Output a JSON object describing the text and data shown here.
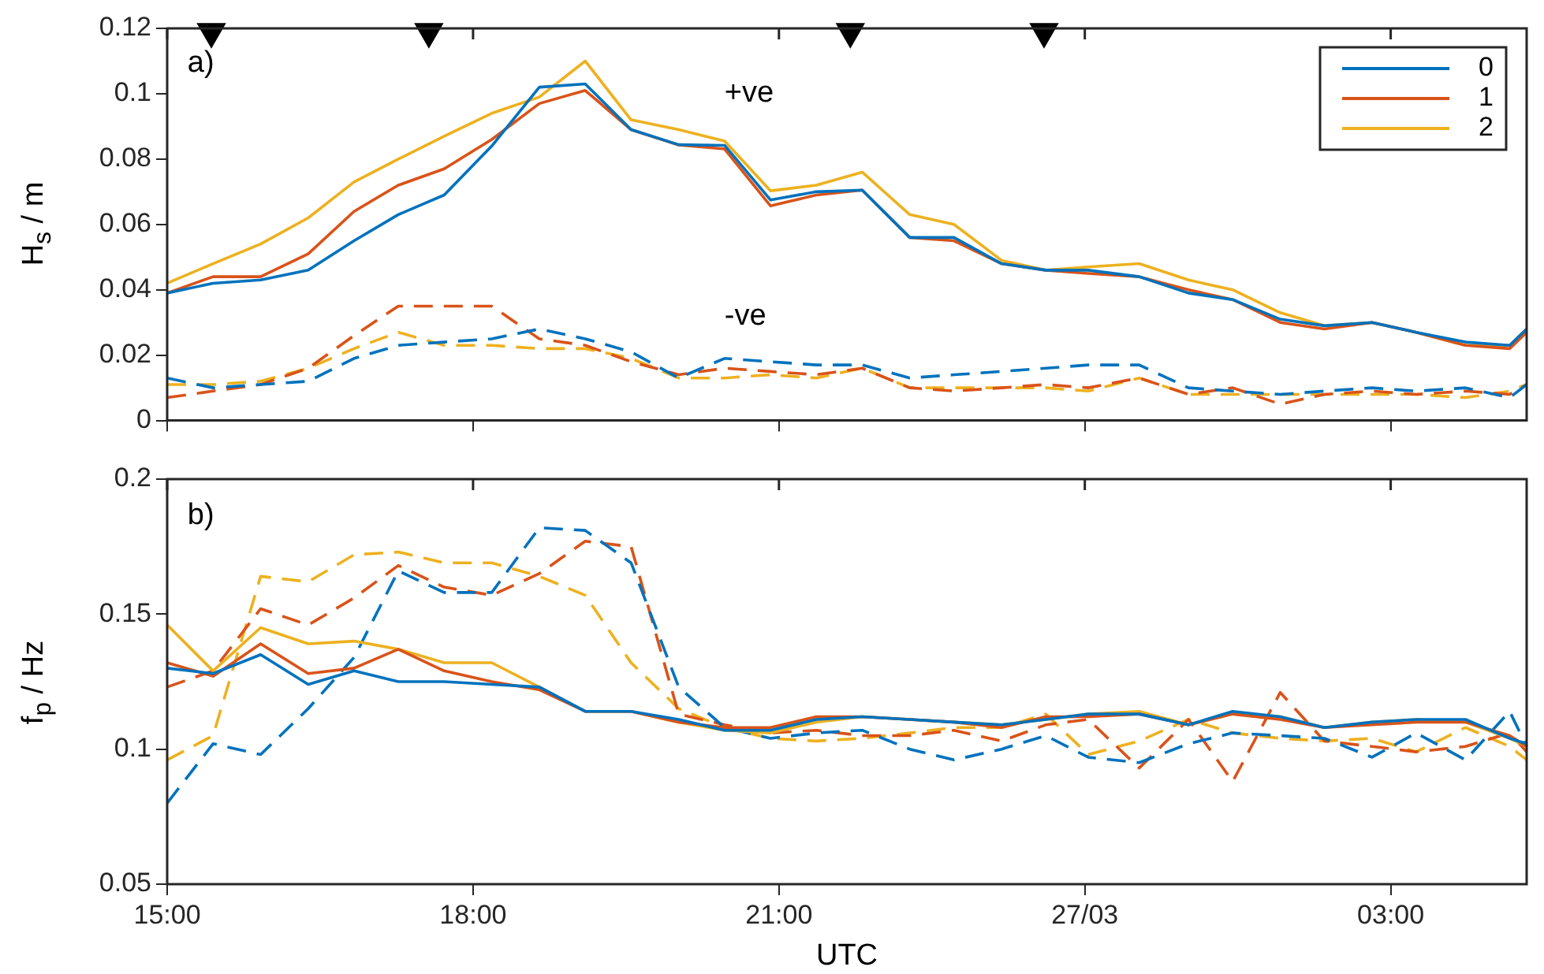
{
  "chart_data": [
    {
      "type": "line",
      "ylabel": "H$_{s}$ / m",
      "xlim": [
        "--03-26T15:00",
        "--03-27T04:20"
      ],
      "ylim": [
        0,
        0.12
      ],
      "xticks": [
        {
          "value": "--03-26T15:00",
          "label": null
        },
        {
          "value": "--03-26T18:00",
          "label": null
        },
        {
          "value": "--03-26T21:00",
          "label": null
        },
        {
          "value": "--03-27T00:00",
          "label": null
        },
        {
          "value": "--03-27T03:00",
          "label": null
        }
      ],
      "yticks": [
        0,
        0.02,
        0.04,
        0.06,
        0.08,
        0.1,
        0.12
      ],
      "tick_labels": "y",
      "legend": "top right",
      "grid": false,
      "annotations": [
        "a)",
        "+ve",
        "-ve"
      ],
      "x": [
        "--03-26T15:00",
        "--03-26T15:27",
        "--03-26T15:55",
        "--03-26T16:23",
        "--03-26T16:50",
        "--03-26T17:16",
        "--03-26T17:43",
        "--03-26T18:11",
        "--03-26T18:39",
        "--03-26T19:06",
        "--03-26T19:33",
        "--03-26T20:01",
        "--03-26T20:28",
        "--03-26T20:55",
        "--03-26T21:22",
        "--03-26T21:49",
        "--03-26T22:17",
        "--03-26T22:43",
        "--03-26T23:11",
        "--03-26T23:37",
        "--03-27T00:02",
        "--03-27T00:32",
        "--03-27T01:01",
        "--03-27T01:27",
        "--03-27T01:55",
        "--03-27T02:21",
        "--03-27T02:49",
        "--03-27T03:15",
        "--03-27T03:44",
        "--03-27T04:10",
        "--03-27T04:20"
      ],
      "series": [
        {
          "name": "0",
          "color": "#0072bd",
          "line_style": "solid",
          "values": [
            0.039,
            0.042,
            0.043,
            0.046,
            0.055,
            0.063,
            0.069,
            0.084,
            0.102,
            0.103,
            0.089,
            0.0844,
            0.0842,
            0.0675,
            0.07,
            0.0705,
            0.056,
            0.056,
            0.048,
            0.046,
            0.046,
            0.044,
            0.039,
            0.037,
            0.031,
            0.029,
            0.03,
            0.027,
            0.024,
            0.023,
            0.028
          ]
        },
        {
          "name": "1",
          "color": "#d95319",
          "line_style": "solid",
          "values": [
            0.039,
            0.044,
            0.044,
            0.051,
            0.064,
            0.072,
            0.077,
            0.086,
            0.097,
            0.101,
            0.089,
            0.0843,
            0.0831,
            0.0657,
            0.069,
            0.0705,
            0.056,
            0.055,
            0.048,
            0.046,
            0.045,
            0.044,
            0.04,
            0.037,
            0.03,
            0.028,
            0.03,
            0.027,
            0.023,
            0.022,
            0.027
          ]
        },
        {
          "name": "2",
          "color": "#edb120",
          "line_style": "solid",
          "values": [
            0.042,
            0.048,
            0.054,
            0.062,
            0.073,
            0.08,
            0.087,
            0.094,
            0.099,
            0.11,
            0.092,
            0.089,
            0.0855,
            0.0703,
            0.072,
            0.076,
            0.063,
            0.06,
            0.049,
            0.046,
            0.047,
            0.048,
            0.043,
            0.04,
            0.033,
            0.029,
            0.03,
            0.027,
            0.023,
            0.023,
            0.028
          ]
        },
        {
          "color": "#0072bd",
          "line_style": "dashed",
          "values": [
            0.013,
            0.01,
            0.011,
            0.012,
            0.019,
            0.023,
            0.024,
            0.025,
            0.028,
            0.025,
            0.021,
            0.013,
            0.019,
            0.018,
            0.017,
            0.017,
            0.013,
            0.014,
            0.015,
            0.016,
            0.017,
            0.017,
            0.01,
            0.009,
            0.008,
            0.009,
            0.01,
            0.009,
            0.01,
            0.007,
            0.011
          ]
        },
        {
          "color": "#d95319",
          "line_style": "dashed",
          "values": [
            0.007,
            0.009,
            0.011,
            0.016,
            0.026,
            0.035,
            0.035,
            0.035,
            0.025,
            0.023,
            0.018,
            0.014,
            0.016,
            0.015,
            0.014,
            0.016,
            0.01,
            0.009,
            0.01,
            0.011,
            0.01,
            0.013,
            0.008,
            0.01,
            0.005,
            0.008,
            0.009,
            0.008,
            0.009,
            0.008,
            0.011
          ]
        },
        {
          "color": "#edb120",
          "line_style": "dashed",
          "values": [
            0.011,
            0.011,
            0.012,
            0.016,
            0.022,
            0.027,
            0.023,
            0.023,
            0.022,
            0.022,
            0.019,
            0.013,
            0.013,
            0.014,
            0.013,
            0.016,
            0.01,
            0.01,
            0.01,
            0.01,
            0.009,
            0.013,
            0.008,
            0.008,
            0.008,
            0.008,
            0.008,
            0.008,
            0.007,
            0.009,
            0.011
          ]
        },
        {
          "type": "scatter",
          "color": "#000000",
          "marker": "triangle",
          "x": [
            "--03-26T15:26",
            "--03-26T17:34",
            "--03-26T21:42",
            "--03-26T23:36"
          ],
          "values": [
            0.119,
            0.119,
            0.119,
            0.119
          ]
        }
      ]
    },
    {
      "type": "line",
      "ylabel": "f$_{p}$ / Hz",
      "xlabel": "UTC",
      "ylim": [
        0.05,
        0.2
      ],
      "xticks": [
        {
          "value": "--03-26T15:00",
          "label": "15:00"
        },
        {
          "value": "--03-26T18:00",
          "label": "18:00"
        },
        {
          "value": "--03-26T21:00",
          "label": "21:00"
        },
        {
          "value": "--03-27T00:00",
          "label": "27/03"
        },
        {
          "value": "--03-27T03:00",
          "label": "03:00"
        }
      ],
      "yticks": [
        0.05,
        0.1,
        0.15,
        0.2
      ],
      "grid": false,
      "xlim": [
        "--03-26T15:00",
        "--03-27T04:20"
      ],
      "annotations": [
        "b)"
      ],
      "x": [
        "--03-26T15:00",
        "--03-26T15:27",
        "--03-26T15:55",
        "--03-26T16:23",
        "--03-26T16:50",
        "--03-26T17:16",
        "--03-26T17:43",
        "--03-26T18:11",
        "--03-26T18:39",
        "--03-26T19:06",
        "--03-26T19:33",
        "--03-26T20:01",
        "--03-26T20:28",
        "--03-26T20:55",
        "--03-26T21:22",
        "--03-26T21:49",
        "--03-26T22:17",
        "--03-26T22:43",
        "--03-26T23:11",
        "--03-26T23:37",
        "--03-27T00:02",
        "--03-27T00:32",
        "--03-27T01:01",
        "--03-27T01:27",
        "--03-27T01:55",
        "--03-27T02:21",
        "--03-27T02:49",
        "--03-27T03:15",
        "--03-27T03:44",
        "--03-27T04:10",
        "--03-27T04:20"
      ],
      "series": [
        {
          "color": "#0072bd",
          "line_style": "solid",
          "values": [
            0.13,
            0.128,
            0.135,
            0.124,
            0.129,
            0.125,
            0.125,
            0.124,
            0.123,
            0.114,
            0.114,
            0.111,
            0.107,
            0.107,
            0.111,
            0.112,
            0.111,
            0.11,
            0.109,
            0.111,
            0.113,
            0.113,
            0.109,
            0.114,
            0.112,
            0.108,
            0.11,
            0.111,
            0.111,
            0.104,
            0.102
          ]
        },
        {
          "color": "#d95319",
          "line_style": "solid",
          "values": [
            0.132,
            0.127,
            0.139,
            0.128,
            0.13,
            0.137,
            0.129,
            0.125,
            0.122,
            0.114,
            0.114,
            0.11,
            0.108,
            0.108,
            0.112,
            0.112,
            0.111,
            0.11,
            0.108,
            0.112,
            0.112,
            0.113,
            0.109,
            0.113,
            0.111,
            0.108,
            0.109,
            0.11,
            0.11,
            0.105,
            0.101
          ]
        },
        {
          "color": "#edb120",
          "line_style": "solid",
          "values": [
            0.146,
            0.129,
            0.145,
            0.139,
            0.14,
            0.137,
            0.132,
            0.132,
            0.123,
            0.114,
            0.114,
            0.11,
            0.107,
            0.106,
            0.11,
            0.112,
            0.111,
            0.11,
            0.109,
            0.111,
            0.113,
            0.114,
            0.109,
            0.113,
            0.112,
            0.108,
            0.11,
            0.111,
            0.11,
            0.104,
            0.101
          ]
        },
        {
          "color": "#0072bd",
          "line_style": "dashed",
          "values": [
            0.08,
            0.102,
            0.098,
            0.115,
            0.134,
            0.166,
            0.158,
            0.158,
            0.182,
            0.181,
            0.169,
            0.123,
            0.108,
            0.104,
            0.106,
            0.107,
            0.1,
            0.096,
            0.1,
            0.105,
            0.097,
            0.095,
            0.102,
            0.106,
            0.105,
            0.104,
            0.097,
            0.106,
            0.096,
            0.114,
            0.101
          ]
        },
        {
          "color": "#d95319",
          "line_style": "dashed",
          "values": [
            0.123,
            0.129,
            0.152,
            0.146,
            0.156,
            0.168,
            0.16,
            0.157,
            0.165,
            0.177,
            0.175,
            0.113,
            0.109,
            0.106,
            0.107,
            0.105,
            0.105,
            0.107,
            0.103,
            0.109,
            0.111,
            0.093,
            0.111,
            0.088,
            0.121,
            0.103,
            0.101,
            0.099,
            0.101,
            0.106,
            0.099
          ]
        },
        {
          "color": "#edb120",
          "line_style": "dashed",
          "values": [
            0.096,
            0.105,
            0.164,
            0.162,
            0.172,
            0.173,
            0.169,
            0.169,
            0.164,
            0.157,
            0.132,
            0.115,
            0.108,
            0.104,
            0.103,
            0.104,
            0.106,
            0.108,
            0.108,
            0.113,
            0.098,
            0.103,
            0.111,
            0.106,
            0.104,
            0.103,
            0.104,
            0.099,
            0.108,
            0.101,
            0.096
          ]
        }
      ]
    }
  ]
}
